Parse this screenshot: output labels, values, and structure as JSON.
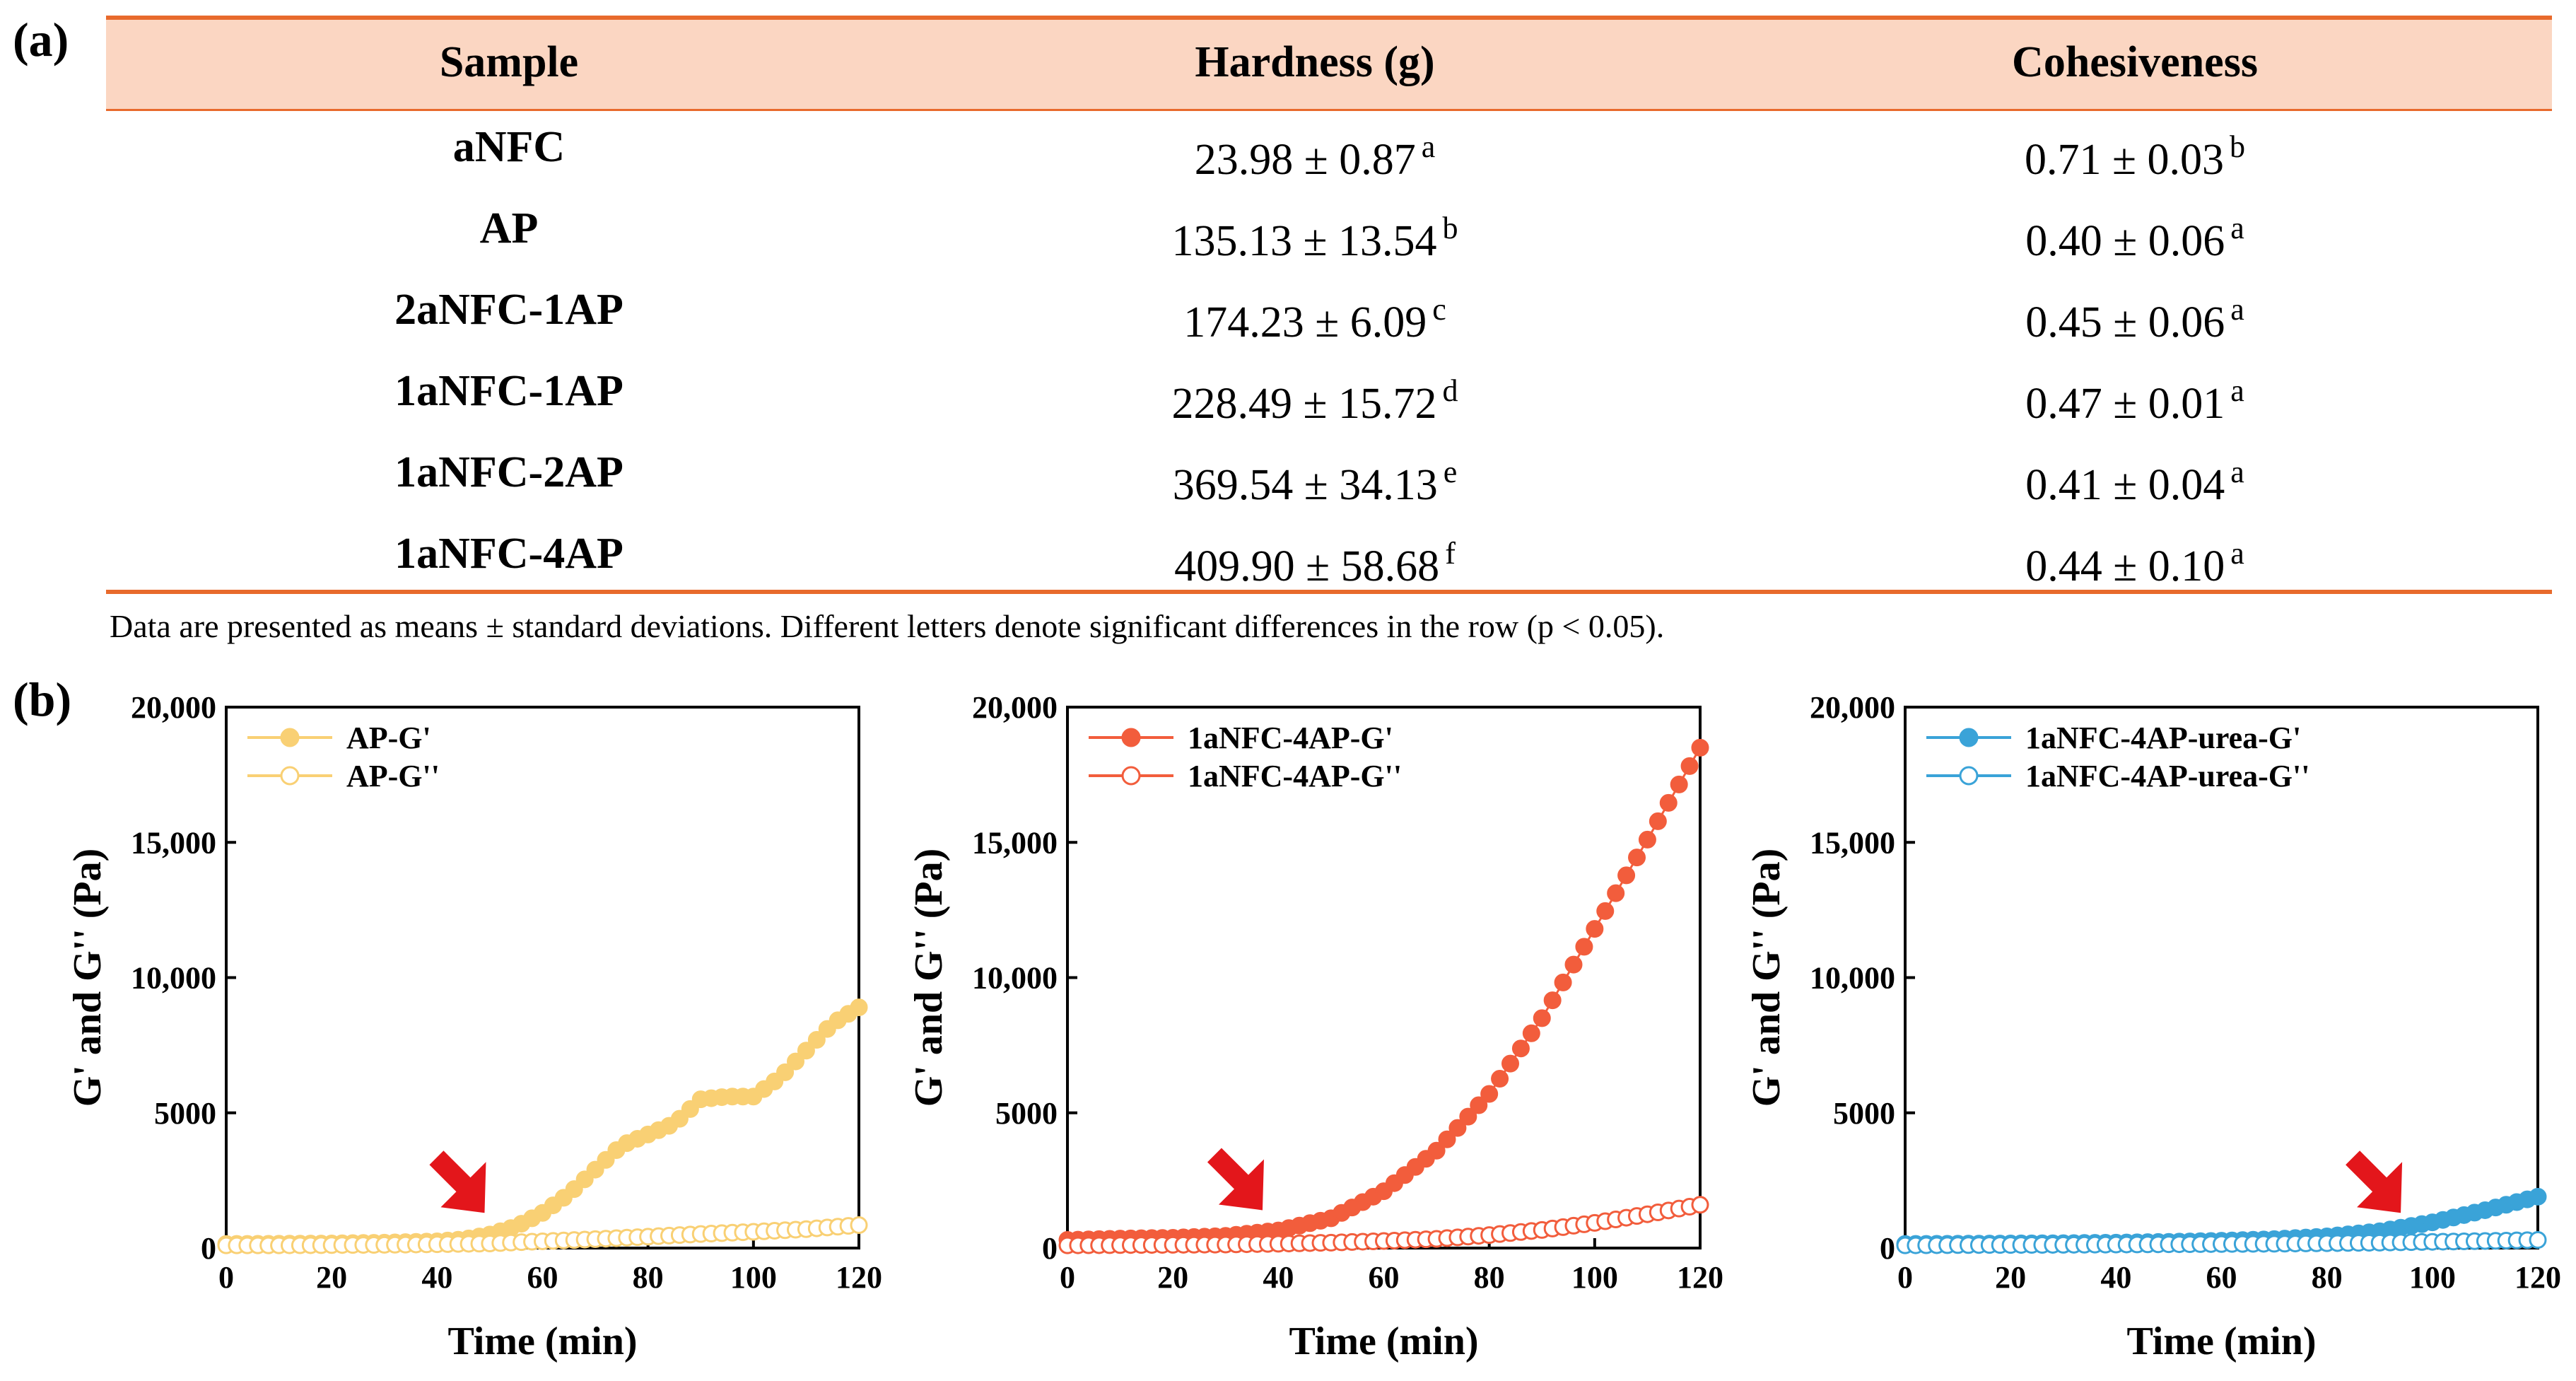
{
  "panel_labels": {
    "a": "(a)",
    "b": "(b)"
  },
  "table": {
    "headers": [
      "Sample",
      "Hardness (g)",
      "Cohesiveness"
    ],
    "rows": [
      {
        "sample": "aNFC",
        "hardness": "23.98 ± 0.87",
        "hardness_letter": "a",
        "cohesiveness": "0.71 ± 0.03",
        "cohesiveness_letter": "b"
      },
      {
        "sample": "AP",
        "hardness": "135.13 ± 13.54",
        "hardness_letter": "b",
        "cohesiveness": "0.40 ± 0.06",
        "cohesiveness_letter": "a"
      },
      {
        "sample": "2aNFC-1AP",
        "hardness": "174.23 ± 6.09",
        "hardness_letter": "c",
        "cohesiveness": "0.45 ± 0.06",
        "cohesiveness_letter": "a"
      },
      {
        "sample": "1aNFC-1AP",
        "hardness": "228.49 ± 15.72",
        "hardness_letter": "d",
        "cohesiveness": "0.47 ± 0.01",
        "cohesiveness_letter": "a"
      },
      {
        "sample": "1aNFC-2AP",
        "hardness": "369.54 ± 34.13",
        "hardness_letter": "e",
        "cohesiveness": "0.41 ± 0.04",
        "cohesiveness_letter": "a"
      },
      {
        "sample": "1aNFC-4AP",
        "hardness": "409.90 ± 58.68",
        "hardness_letter": "f",
        "cohesiveness": "0.44 ± 0.10",
        "cohesiveness_letter": "a"
      }
    ],
    "note": "Data are presented as means ± standard deviations. Different letters denote significant differences in the row (p < 0.05)."
  },
  "chart_data": [
    {
      "type": "scatter",
      "xlabel": "Time (min)",
      "ylabel": "G' and G'' (Pa)",
      "xlim": [
        0,
        120
      ],
      "ylim": [
        0,
        20000
      ],
      "xticks": [
        "0",
        "20",
        "40",
        "60",
        "80",
        "100",
        "120"
      ],
      "yticks": [
        "0",
        "5000",
        "10,000",
        "15,000",
        "20,000"
      ],
      "legend_position": "top-left",
      "color": "#f9d074",
      "arrow_at": {
        "x": 49,
        "y": 1300
      },
      "series": [
        {
          "name": "AP-G'",
          "filled": true,
          "x": [
            0,
            10,
            20,
            30,
            40,
            45,
            50,
            55,
            60,
            65,
            70,
            75,
            80,
            85,
            90,
            95,
            100,
            105,
            110,
            115,
            120
          ],
          "y": [
            150,
            160,
            170,
            200,
            250,
            320,
            500,
            800,
            1300,
            2000,
            2900,
            3800,
            4200,
            4600,
            5500,
            5600,
            5600,
            6300,
            7300,
            8300,
            8900
          ]
        },
        {
          "name": "AP-G''",
          "filled": false,
          "x": [
            0,
            10,
            20,
            30,
            40,
            50,
            60,
            70,
            80,
            90,
            100,
            110,
            120
          ],
          "y": [
            100,
            100,
            110,
            120,
            140,
            170,
            250,
            330,
            420,
            520,
            600,
            700,
            850
          ]
        }
      ]
    },
    {
      "type": "scatter",
      "xlabel": "Time (min)",
      "ylabel": "G' and G'' (Pa)",
      "xlim": [
        0,
        120
      ],
      "ylim": [
        0,
        20000
      ],
      "xticks": [
        "0",
        "20",
        "40",
        "60",
        "80",
        "100",
        "120"
      ],
      "yticks": [
        "0",
        "5000",
        "10,000",
        "15,000",
        "20,000"
      ],
      "legend_position": "top-left",
      "color": "#f25d3c",
      "arrow_at": {
        "x": 37,
        "y": 1400
      },
      "series": [
        {
          "name": "1aNFC-4AP-G'",
          "filled": true,
          "x": [
            0,
            10,
            20,
            30,
            40,
            50,
            60,
            70,
            80,
            90,
            100,
            110,
            120
          ],
          "y": [
            300,
            350,
            380,
            450,
            650,
            1100,
            2100,
            3600,
            5700,
            8500,
            11800,
            15100,
            18500
          ]
        },
        {
          "name": "1aNFC-4AP-G''",
          "filled": false,
          "x": [
            0,
            10,
            20,
            30,
            40,
            50,
            60,
            70,
            80,
            90,
            100,
            110,
            120
          ],
          "y": [
            100,
            110,
            120,
            130,
            160,
            200,
            260,
            340,
            480,
            670,
            930,
            1250,
            1600
          ]
        }
      ]
    },
    {
      "type": "scatter",
      "xlabel": "Time (min)",
      "ylabel": "G' and G'' (Pa)",
      "xlim": [
        0,
        120
      ],
      "ylim": [
        0,
        20000
      ],
      "xticks": [
        "0",
        "20",
        "40",
        "60",
        "80",
        "100",
        "120"
      ],
      "yticks": [
        "0",
        "5000",
        "10,000",
        "15,000",
        "20,000"
      ],
      "legend_position": "top-left",
      "color": "#3aa3d8",
      "arrow_at": {
        "x": 94,
        "y": 1300
      },
      "series": [
        {
          "name": "1aNFC-4AP-urea-G'",
          "filled": true,
          "x": [
            0,
            10,
            20,
            30,
            40,
            50,
            60,
            70,
            80,
            90,
            100,
            110,
            120
          ],
          "y": [
            150,
            160,
            170,
            180,
            200,
            230,
            270,
            330,
            430,
            620,
            950,
            1400,
            1900
          ]
        },
        {
          "name": "1aNFC-4AP-urea-G''",
          "filled": false,
          "x": [
            0,
            10,
            20,
            30,
            40,
            50,
            60,
            70,
            80,
            90,
            100,
            110,
            120
          ],
          "y": [
            100,
            110,
            115,
            120,
            130,
            140,
            150,
            160,
            180,
            200,
            230,
            260,
            300
          ]
        }
      ]
    }
  ]
}
